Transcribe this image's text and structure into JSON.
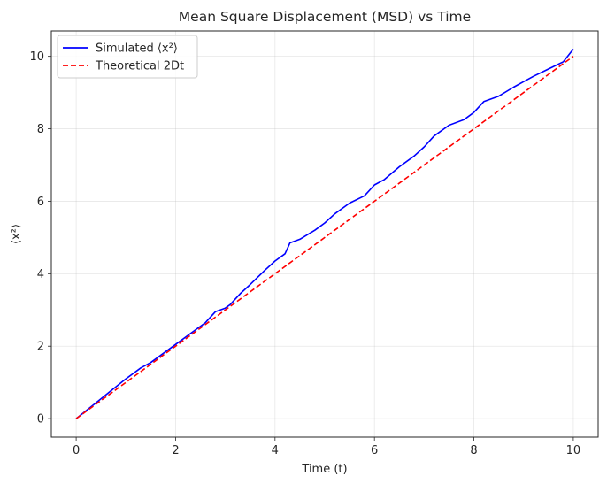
{
  "chart_data": {
    "type": "line",
    "title": "Mean Square Displacement (MSD) vs Time",
    "xlabel": "Time (t)",
    "ylabel": "⟨x²⟩",
    "xlim": [
      -0.5,
      10.5
    ],
    "ylim": [
      -0.51,
      10.7
    ],
    "xticks": [
      0,
      2,
      4,
      6,
      8,
      10
    ],
    "yticks": [
      0,
      2,
      4,
      6,
      8,
      10
    ],
    "grid": true,
    "legend_position": "top-left",
    "series": [
      {
        "name": "Simulated ⟨x²⟩",
        "color": "#0000ff",
        "style": "solid",
        "x": [
          0,
          0.5,
          1,
          1.3,
          1.5,
          2,
          2.3,
          2.6,
          2.8,
          3,
          3.1,
          3.3,
          3.5,
          3.8,
          4,
          4.2,
          4.3,
          4.5,
          4.8,
          5,
          5.2,
          5.5,
          5.8,
          6,
          6.2,
          6.5,
          6.8,
          7,
          7.2,
          7.5,
          7.8,
          8,
          8.2,
          8.5,
          8.8,
          9,
          9.2,
          9.5,
          9.8,
          10
        ],
        "y": [
          0,
          0.55,
          1.1,
          1.4,
          1.55,
          2.05,
          2.35,
          2.65,
          2.95,
          3.05,
          3.15,
          3.45,
          3.7,
          4.1,
          4.35,
          4.55,
          4.85,
          4.95,
          5.2,
          5.4,
          5.65,
          5.95,
          6.15,
          6.45,
          6.6,
          6.95,
          7.25,
          7.5,
          7.8,
          8.1,
          8.25,
          8.45,
          8.75,
          8.9,
          9.15,
          9.3,
          9.45,
          9.65,
          9.85,
          10.2
        ]
      },
      {
        "name": "Theoretical 2Dt",
        "color": "#ff0000",
        "style": "dashed",
        "x": [
          0,
          10
        ],
        "y": [
          0,
          10
        ]
      }
    ]
  }
}
